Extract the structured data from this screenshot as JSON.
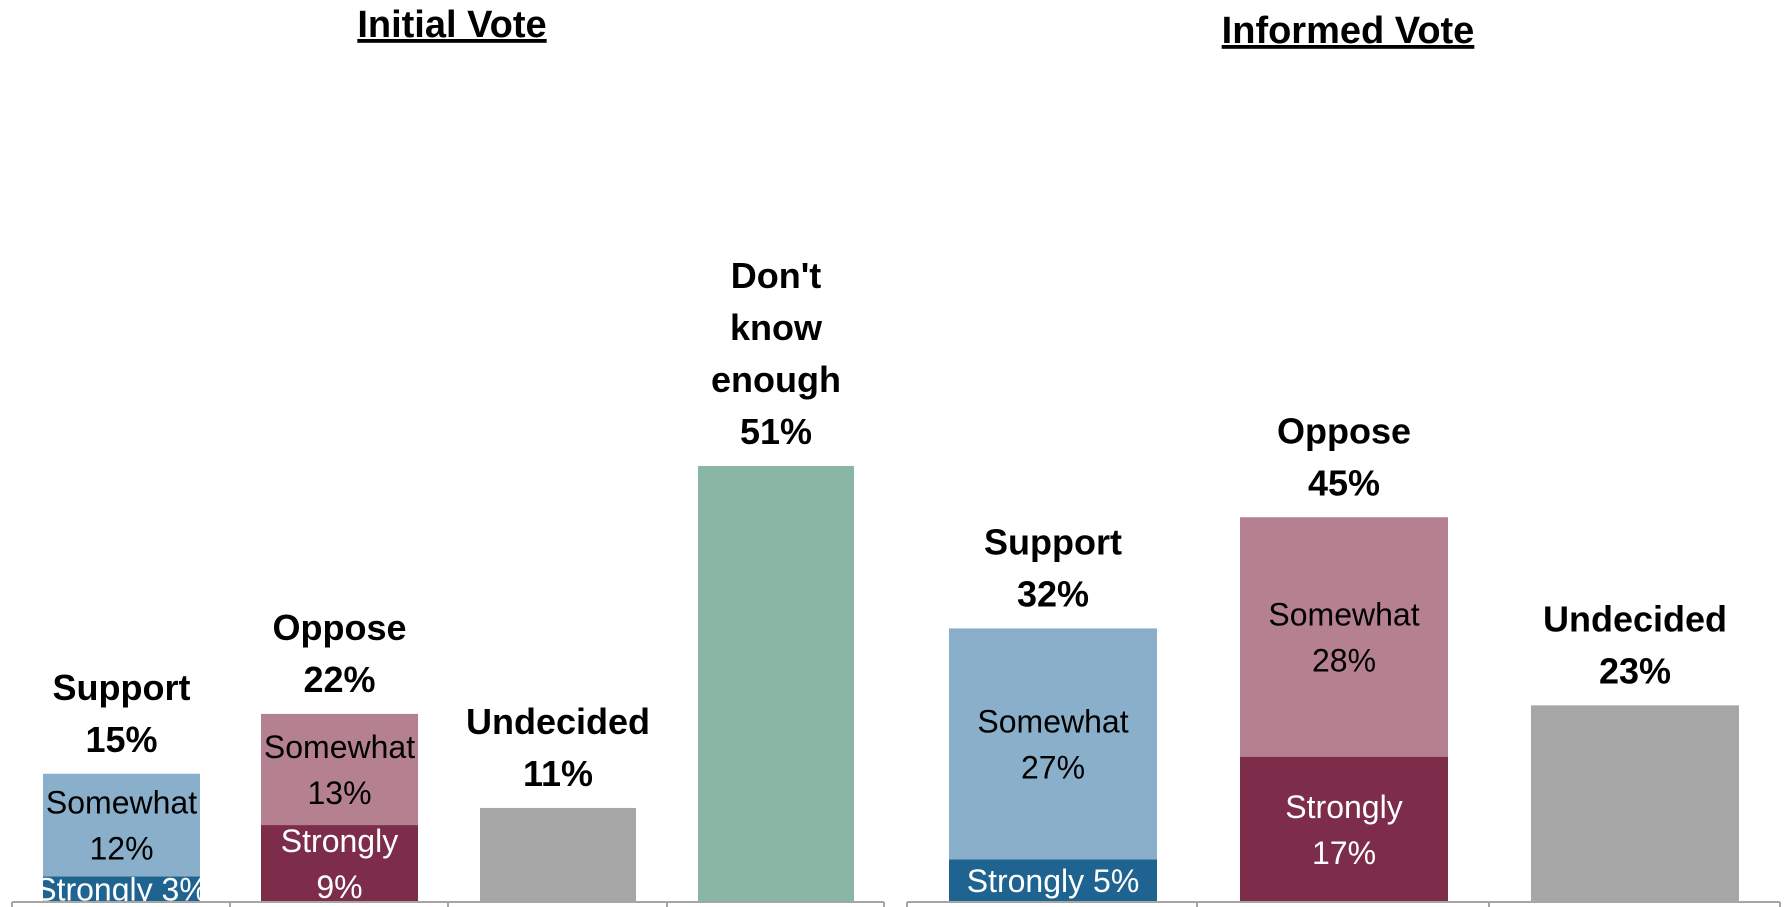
{
  "colors": {
    "support_somewhat": "#8aafca",
    "support_strongly": "#1f6391",
    "oppose_somewhat": "#b5808f",
    "oppose_strongly": "#7d2c4a",
    "undecided": "#a6a6a6",
    "dont_know": "#89b6a5",
    "axis": "#a6a6a6",
    "label_dark": "#000000",
    "label_light": "#ffffff"
  },
  "chart_data": [
    {
      "type": "bar",
      "title": "Initial Vote",
      "ylim": [
        0,
        60
      ],
      "bars": [
        {
          "label": [
            "Support",
            "15%"
          ],
          "total": 15,
          "segments": [
            {
              "key": "support_strongly",
              "value": 3,
              "text": [
                "Strongly 3%"
              ],
              "text_color": "label_light"
            },
            {
              "key": "support_somewhat",
              "value": 12,
              "text": [
                "Somewhat",
                "12%"
              ],
              "text_color": "label_dark"
            }
          ]
        },
        {
          "label": [
            "Oppose",
            "22%"
          ],
          "total": 22,
          "segments": [
            {
              "key": "oppose_strongly",
              "value": 9,
              "text": [
                "Strongly",
                "9%"
              ],
              "text_color": "label_light"
            },
            {
              "key": "oppose_somewhat",
              "value": 13,
              "text": [
                "Somewhat",
                "13%"
              ],
              "text_color": "label_dark"
            }
          ]
        },
        {
          "label": [
            "Undecided",
            "11%"
          ],
          "total": 11,
          "segments": [
            {
              "key": "undecided",
              "value": 11,
              "text": [],
              "text_color": "label_dark"
            }
          ]
        },
        {
          "label": [
            "Don't",
            "know",
            "enough",
            "51%"
          ],
          "total": 51,
          "segments": [
            {
              "key": "dont_know",
              "value": 51,
              "text": [],
              "text_color": "label_dark"
            }
          ]
        }
      ]
    },
    {
      "type": "bar",
      "title": "Informed Vote",
      "ylim": [
        0,
        60
      ],
      "bars": [
        {
          "label": [
            "Support",
            "32%"
          ],
          "total": 32,
          "segments": [
            {
              "key": "support_strongly",
              "value": 5,
              "text": [
                "Strongly 5%"
              ],
              "text_color": "label_light"
            },
            {
              "key": "support_somewhat",
              "value": 27,
              "text": [
                "Somewhat",
                "27%"
              ],
              "text_color": "label_dark"
            }
          ]
        },
        {
          "label": [
            "Oppose",
            "45%"
          ],
          "total": 45,
          "segments": [
            {
              "key": "oppose_strongly",
              "value": 17,
              "text": [
                "Strongly",
                "17%"
              ],
              "text_color": "label_light"
            },
            {
              "key": "oppose_somewhat",
              "value": 28,
              "text": [
                "Somewhat",
                "28%"
              ],
              "text_color": "label_dark"
            }
          ]
        },
        {
          "label": [
            "Undecided",
            "23%"
          ],
          "total": 23,
          "segments": [
            {
              "key": "undecided",
              "value": 23,
              "text": [],
              "text_color": "label_dark"
            }
          ]
        }
      ]
    }
  ]
}
